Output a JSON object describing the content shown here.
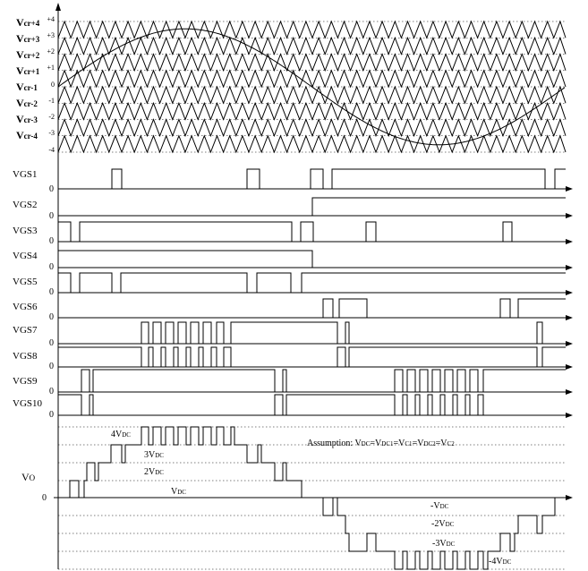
{
  "carriers": {
    "labels": [
      {
        "main": "V",
        "sub": "cr+4",
        "value": "+4"
      },
      {
        "main": "V",
        "sub": "cr+3",
        "value": "+3"
      },
      {
        "main": "V",
        "sub": "cr+2",
        "value": "+2"
      },
      {
        "main": "V",
        "sub": "cr+1",
        "value": "+1"
      },
      {
        "main": "V",
        "sub": "cr-1",
        "value": "0"
      },
      {
        "main": "V",
        "sub": "cr-2",
        "value": "-1"
      },
      {
        "main": "V",
        "sub": "cr-3",
        "value": "-2"
      },
      {
        "main": "V",
        "sub": "cr-4",
        "value": "-3"
      }
    ],
    "bottom_value": "-4"
  },
  "gate_signals": [
    {
      "label": "VGS1",
      "zero": "0"
    },
    {
      "label": "VGS2",
      "zero": "0"
    },
    {
      "label": "VGS3",
      "zero": "0"
    },
    {
      "label": "VGS4",
      "zero": "0"
    },
    {
      "label": "VGS5",
      "zero": "0"
    },
    {
      "label": "VGS6",
      "zero": "0"
    },
    {
      "label": "VGS7",
      "zero": "0"
    },
    {
      "label": "VGS8",
      "zero": "0"
    },
    {
      "label": "VGS9",
      "zero": "0"
    },
    {
      "label": "VGS10",
      "zero": "0"
    }
  ],
  "output": {
    "label_main": "V",
    "label_sub": "O",
    "zero": "0",
    "levels": [
      {
        "pre": "4V",
        "sub": "DC"
      },
      {
        "pre": "3V",
        "sub": "DC"
      },
      {
        "pre": "2V",
        "sub": "DC"
      },
      {
        "pre": "V",
        "sub": "DC"
      },
      {
        "pre": "-V",
        "sub": "DC"
      },
      {
        "pre": "-2V",
        "sub": "DC"
      },
      {
        "pre": "-3V",
        "sub": "DC"
      },
      {
        "pre": "-4V",
        "sub": "DC"
      }
    ],
    "assumption": {
      "prefix": "Assumption: V",
      "parts": [
        {
          "sub": "DC",
          "after": "=V"
        },
        {
          "sub": "DC1",
          "after": "=V"
        },
        {
          "sub": "C1",
          "after": "=V"
        },
        {
          "sub": "DC2",
          "after": "=V"
        },
        {
          "sub": "C2",
          "after": ""
        }
      ]
    }
  }
}
